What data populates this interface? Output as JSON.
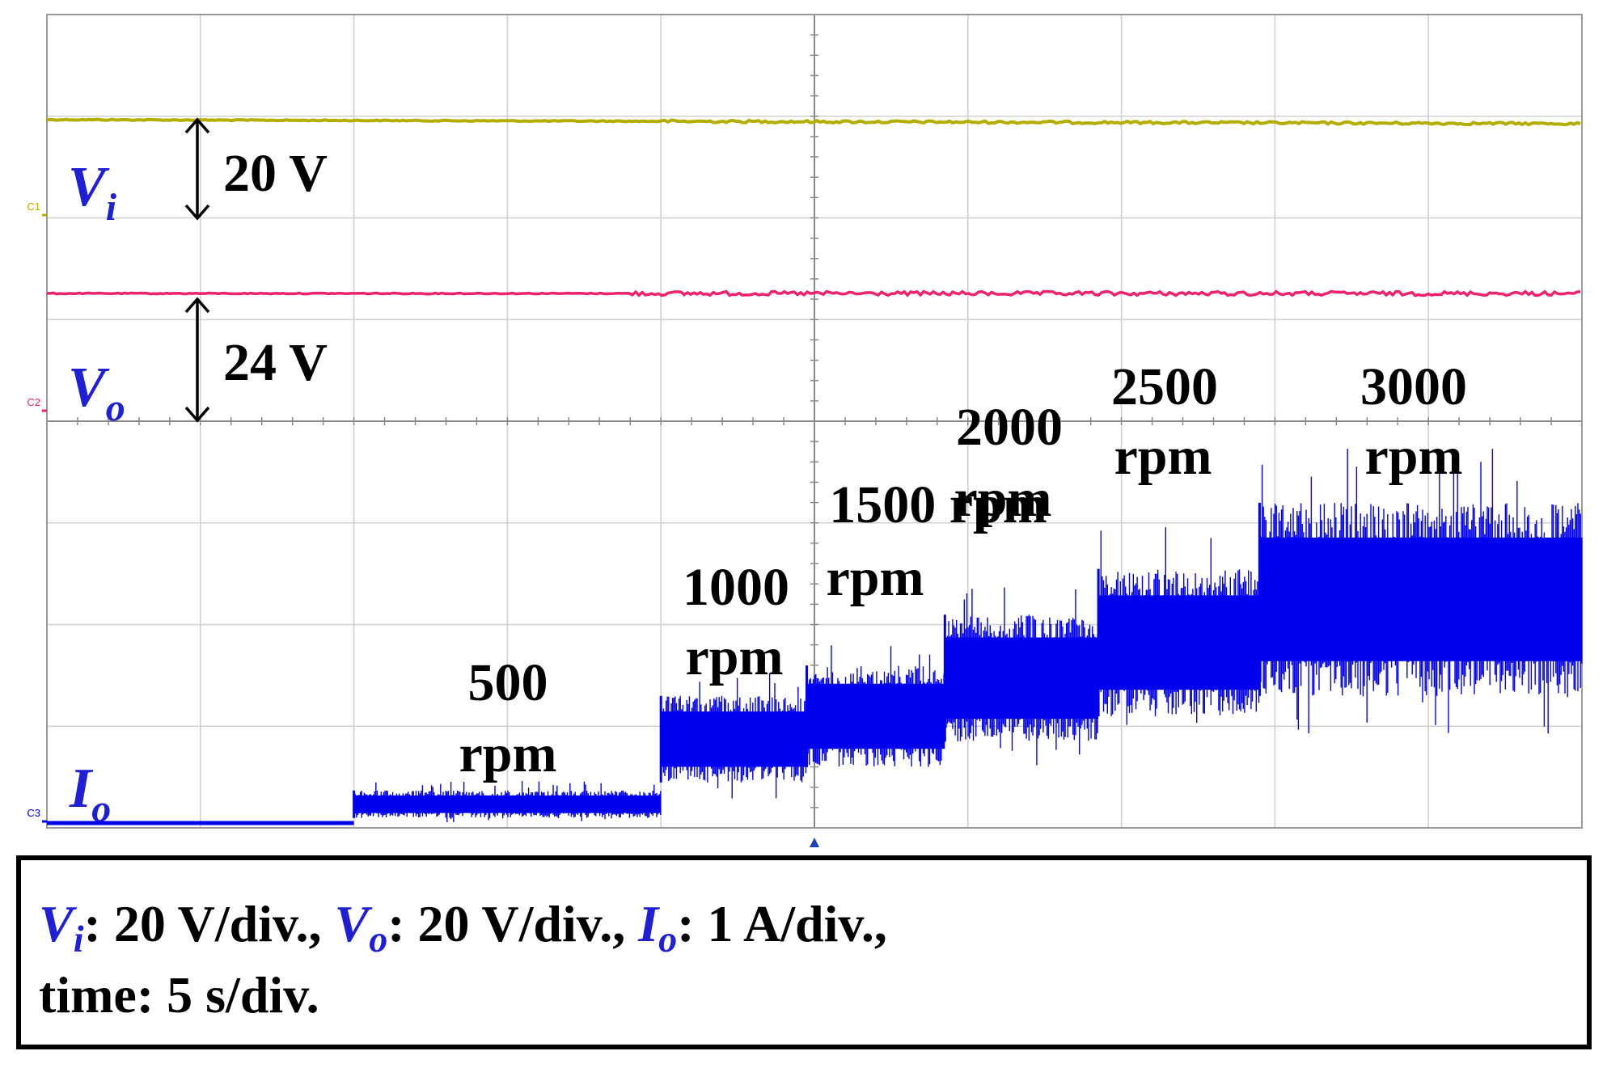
{
  "chart_data": {
    "type": "line",
    "grid": true,
    "x_divisions": 10,
    "y_divisions": 8,
    "channel_markers": [
      "C1",
      "C2",
      "C3"
    ],
    "channels": [
      {
        "symbol": "V",
        "subscript": "i",
        "color": "#b3ad00",
        "marker": "C1",
        "amplitude_label": "20 V"
      },
      {
        "symbol": "V",
        "subscript": "o",
        "color": "#f0226e",
        "marker": "C2",
        "amplitude_label": "24 V"
      },
      {
        "symbol": "I",
        "subscript": "o",
        "color": "#0000ee",
        "marker": "C3"
      }
    ],
    "current_steps_div": [
      {
        "x_start": 0.0,
        "x_end": 2.0,
        "low": 0.0,
        "high": 0.0,
        "label": []
      },
      {
        "x_start": 2.0,
        "x_end": 4.0,
        "low": 0.05,
        "high": 0.32,
        "label": [
          "500",
          "rpm"
        ]
      },
      {
        "x_start": 4.0,
        "x_end": 4.95,
        "low": 0.4,
        "high": 1.25,
        "label": [
          "1000",
          "rpm"
        ]
      },
      {
        "x_start": 4.95,
        "x_end": 5.85,
        "low": 0.55,
        "high": 1.55,
        "label": [
          "1500 rpm"
        ]
      },
      {
        "x_start": 5.85,
        "x_end": 6.85,
        "low": 0.8,
        "high": 2.05,
        "label": [
          "2000",
          "rpm"
        ]
      },
      {
        "x_start": 6.85,
        "x_end": 7.9,
        "low": 1.05,
        "high": 2.5,
        "label": [
          "2500",
          "rpm"
        ]
      },
      {
        "x_start": 7.9,
        "x_end": 10.0,
        "low": 1.25,
        "high": 3.15,
        "label": [
          "3000",
          "rpm"
        ]
      }
    ]
  },
  "caption": {
    "vi_scale": "20 V/div.,",
    "vo_scale": "20 V/div.,",
    "io_scale": "1 A/div.,",
    "time_prefix": "time:",
    "time_scale": "5 s/div."
  }
}
